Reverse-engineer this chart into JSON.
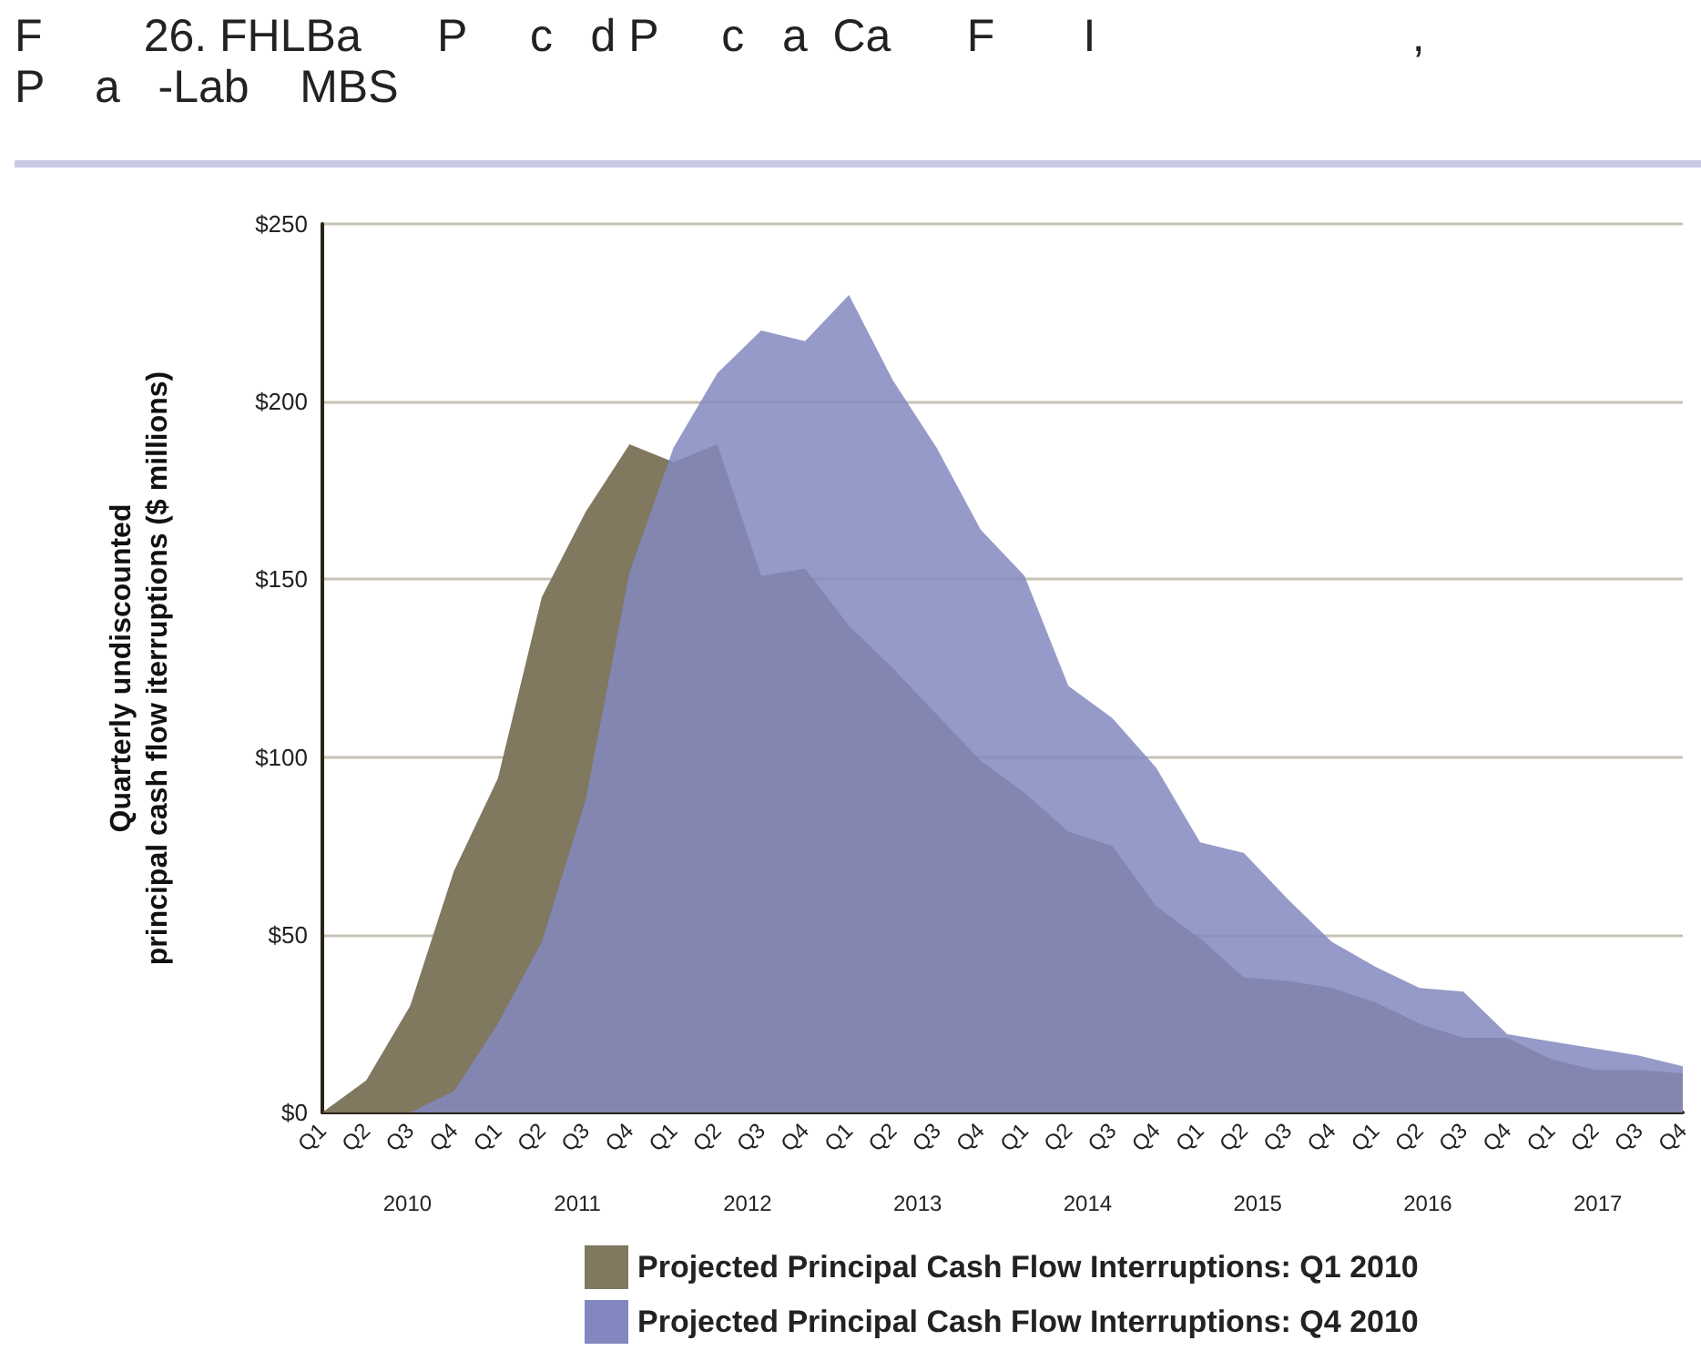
{
  "chart_data": {
    "type": "area",
    "title": "F        26. FHLBa      P     c   d P     c   a  Ca      F       I                         ,\nP    a   -Lab    MBS",
    "ylabel": "Quarterly undiscounted\nprincipal cash flow iterruptions ($ millions)",
    "categories": [
      "Q1",
      "Q2",
      "Q3",
      "Q4",
      "Q1",
      "Q2",
      "Q3",
      "Q4",
      "Q1",
      "Q2",
      "Q3",
      "Q4",
      "Q1",
      "Q2",
      "Q3",
      "Q4",
      "Q1",
      "Q2",
      "Q3",
      "Q4",
      "Q1",
      "Q2",
      "Q3",
      "Q4",
      "Q1",
      "Q2",
      "Q3",
      "Q4",
      "Q1",
      "Q2",
      "Q3",
      "Q4"
    ],
    "annotations": [
      "2010",
      "2011",
      "2012",
      "2013",
      "2014",
      "2015",
      "2016",
      "2017"
    ],
    "series": [
      {
        "name": "Projected Principal Cash Flow Interruptions: Q1 2010",
        "color": "#80785f",
        "values": [
          0,
          9,
          30,
          68,
          94,
          145,
          169,
          188,
          183,
          188,
          151,
          153,
          137,
          125,
          112,
          99,
          90,
          79,
          75,
          58,
          49,
          38,
          37,
          35,
          31,
          25,
          21,
          21,
          15,
          12,
          12,
          11
        ]
      },
      {
        "name": "Projected Principal Cash Flow Interruptions: Q4 2010",
        "color": "#8288bf",
        "values": [
          0,
          0,
          0,
          6,
          25,
          48,
          88,
          152,
          187,
          208,
          220,
          217,
          230,
          206,
          187,
          164,
          151,
          120,
          111,
          97,
          76,
          73,
          60,
          48,
          41,
          35,
          34,
          22,
          20,
          18,
          16,
          13
        ]
      }
    ],
    "ylim": [
      0,
      250
    ],
    "yticks": [
      {
        "value": 0,
        "label": "$0"
      },
      {
        "value": 50,
        "label": "$50"
      },
      {
        "value": 100,
        "label": "$100"
      },
      {
        "value": 150,
        "label": "$150"
      },
      {
        "value": 200,
        "label": "$200"
      },
      {
        "value": 250,
        "label": "$250"
      }
    ],
    "grid": "y",
    "legend": "bottom",
    "marker": "none"
  }
}
